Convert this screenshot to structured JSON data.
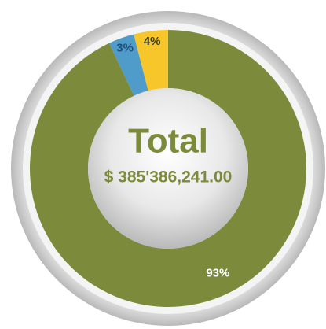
{
  "chart_data": {
    "type": "pie",
    "donut": true,
    "categories": [
      null,
      null,
      null
    ],
    "values": [
      93,
      3,
      4
    ],
    "value_labels": [
      "93%",
      "3%",
      "4%"
    ],
    "colors": [
      "#7b8b3b",
      "#4f9bc9",
      "#f6c62b"
    ],
    "label_colors": [
      "#ffffff",
      "#1f4e79",
      "#3a3a1a"
    ],
    "center_title": "Total",
    "center_label": "$ 385'386,241.00"
  }
}
